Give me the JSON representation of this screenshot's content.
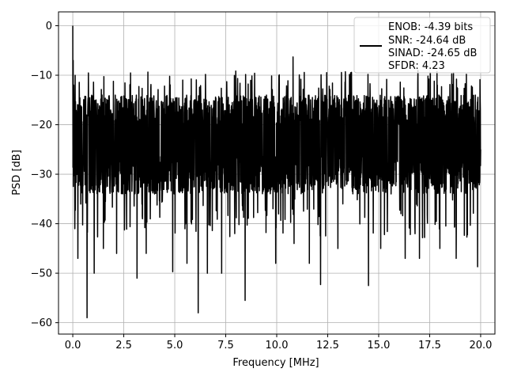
{
  "chart_data": {
    "type": "line",
    "title": "",
    "xlabel": "Frequency [MHz]",
    "ylabel": "PSD [dB]",
    "xlim": [
      -0.7,
      20.7
    ],
    "ylim": [
      -62.3,
      2.8
    ],
    "xticks": [
      0.0,
      2.5,
      5.0,
      7.5,
      10.0,
      12.5,
      15.0,
      17.5,
      20.0
    ],
    "xtick_labels": [
      "0.0",
      "2.5",
      "5.0",
      "7.5",
      "10.0",
      "12.5",
      "15.0",
      "17.5",
      "20.0"
    ],
    "yticks": [
      0,
      -10,
      -20,
      -30,
      -40,
      -50,
      -60
    ],
    "ytick_labels": [
      "0",
      "−10",
      "−20",
      "−30",
      "−40",
      "−50",
      "−60"
    ],
    "grid": true,
    "legend_position": "top-right",
    "series": [
      {
        "name": "",
        "color": "#000000",
        "description_points": {
          "x": [
            0.0,
            0.02,
            0.05,
            0.1,
            0.15,
            0.25,
            0.7,
            1.05,
            1.5,
            2.15,
            3.15,
            3.6,
            4.9,
            5.6,
            6.15,
            6.6,
            7.3,
            8.45,
            9.95,
            10.85,
            11.6,
            12.15,
            13.0,
            14.5,
            15.1,
            16.3,
            17.0,
            18.0,
            18.8,
            19.85,
            20.0
          ],
          "y": [
            0,
            -7,
            -12,
            -41,
            -25,
            -47,
            -59,
            -50,
            -45,
            -46,
            -51,
            -46,
            -49.7,
            -48,
            -58,
            -50,
            -50,
            -55.5,
            -48,
            -44,
            -48,
            -52.3,
            -45,
            -52.5,
            -45,
            -47,
            -47,
            -45,
            -47,
            -48.7,
            -25
          ]
        },
        "band_upper_db": -14,
        "band_lower_db": -34,
        "peak_upper_db": -6.3
      }
    ],
    "legend_lines": [
      "ENOB: -4.39 bits",
      "SNR: -24.64 dB",
      "SINAD: -24.65 dB",
      "SFDR: 4.23"
    ]
  }
}
